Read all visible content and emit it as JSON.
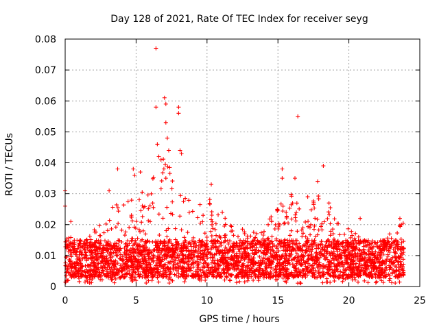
{
  "chart_data": {
    "type": "scatter",
    "title": "Day 128 of 2021, Rate Of TEC Index for receiver seyg",
    "xlabel": "GPS time / hours",
    "ylabel": "ROTI / TECUs",
    "xlim": [
      0,
      25
    ],
    "ylim": [
      0,
      0.08
    ],
    "x_ticks": [
      0,
      5,
      10,
      15,
      20,
      25
    ],
    "x_tick_labels": [
      "0",
      "5",
      "10",
      "15",
      "20",
      "25"
    ],
    "y_ticks": [
      0,
      0.01,
      0.02,
      0.03,
      0.04,
      0.05,
      0.06,
      0.07,
      0.08
    ],
    "y_tick_labels": [
      "0",
      "0.01",
      "0.02",
      "0.03",
      "0.04",
      "0.05",
      "0.06",
      "0.07",
      "0.08"
    ],
    "grid": true,
    "marker": "+",
    "marker_color": "#ff0000",
    "series": [
      {
        "name": "ROTI",
        "x_range_hours": [
          0,
          23.9
        ],
        "baseline_band": [
          0.003,
          0.015
        ],
        "notable_points": [
          {
            "x": 0.0,
            "y": 0.031
          },
          {
            "x": 0.0,
            "y": 0.026
          },
          {
            "x": 0.4,
            "y": 0.021
          },
          {
            "x": 3.1,
            "y": 0.031
          },
          {
            "x": 3.7,
            "y": 0.038
          },
          {
            "x": 4.8,
            "y": 0.038
          },
          {
            "x": 4.9,
            "y": 0.036
          },
          {
            "x": 5.3,
            "y": 0.037
          },
          {
            "x": 6.4,
            "y": 0.077
          },
          {
            "x": 6.4,
            "y": 0.058
          },
          {
            "x": 6.5,
            "y": 0.046
          },
          {
            "x": 6.6,
            "y": 0.042
          },
          {
            "x": 7.0,
            "y": 0.061
          },
          {
            "x": 7.1,
            "y": 0.059
          },
          {
            "x": 7.1,
            "y": 0.053
          },
          {
            "x": 7.2,
            "y": 0.048
          },
          {
            "x": 7.3,
            "y": 0.044
          },
          {
            "x": 7.1,
            "y": 0.035
          },
          {
            "x": 8.0,
            "y": 0.058
          },
          {
            "x": 8.0,
            "y": 0.056
          },
          {
            "x": 8.1,
            "y": 0.044
          },
          {
            "x": 8.2,
            "y": 0.043
          },
          {
            "x": 10.3,
            "y": 0.033
          },
          {
            "x": 15.3,
            "y": 0.038
          },
          {
            "x": 15.3,
            "y": 0.035
          },
          {
            "x": 16.2,
            "y": 0.035
          },
          {
            "x": 16.4,
            "y": 0.055
          },
          {
            "x": 17.1,
            "y": 0.029
          },
          {
            "x": 17.8,
            "y": 0.034
          },
          {
            "x": 18.2,
            "y": 0.039
          },
          {
            "x": 18.6,
            "y": 0.027
          },
          {
            "x": 20.8,
            "y": 0.022
          },
          {
            "x": 23.6,
            "y": 0.022
          },
          {
            "x": 23.7,
            "y": 0.02
          }
        ]
      }
    ]
  }
}
